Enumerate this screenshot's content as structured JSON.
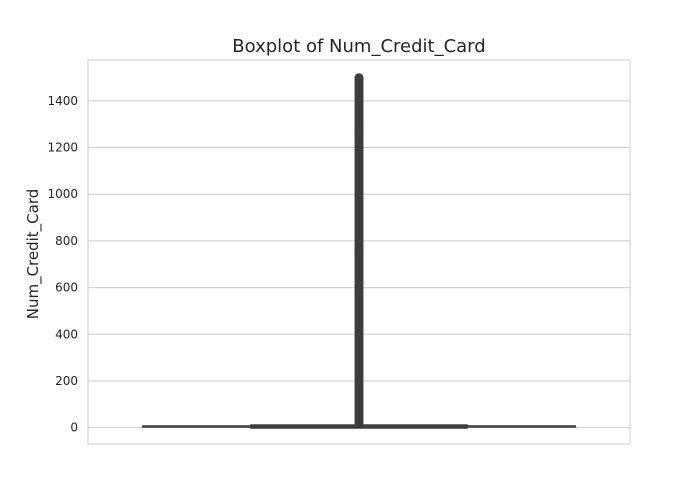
{
  "chart_data": {
    "type": "boxplot",
    "title": "Boxplot of Num_Credit_Card",
    "xlabel": "",
    "ylabel": "Num_Credit_Card",
    "ylim": [
      -70,
      1575
    ],
    "yticks": [
      0,
      200,
      400,
      600,
      800,
      1000,
      1200,
      1400
    ],
    "grid": true,
    "series": [
      {
        "whisker_low": 0,
        "q1": 4,
        "median": 5,
        "q3": 7,
        "whisker_high": 11,
        "outlier_range": [
          12,
          1499
        ]
      }
    ],
    "colors": {
      "box": "#3d3d3d",
      "grid": "#cccccc",
      "frame": "#cccccc"
    }
  }
}
